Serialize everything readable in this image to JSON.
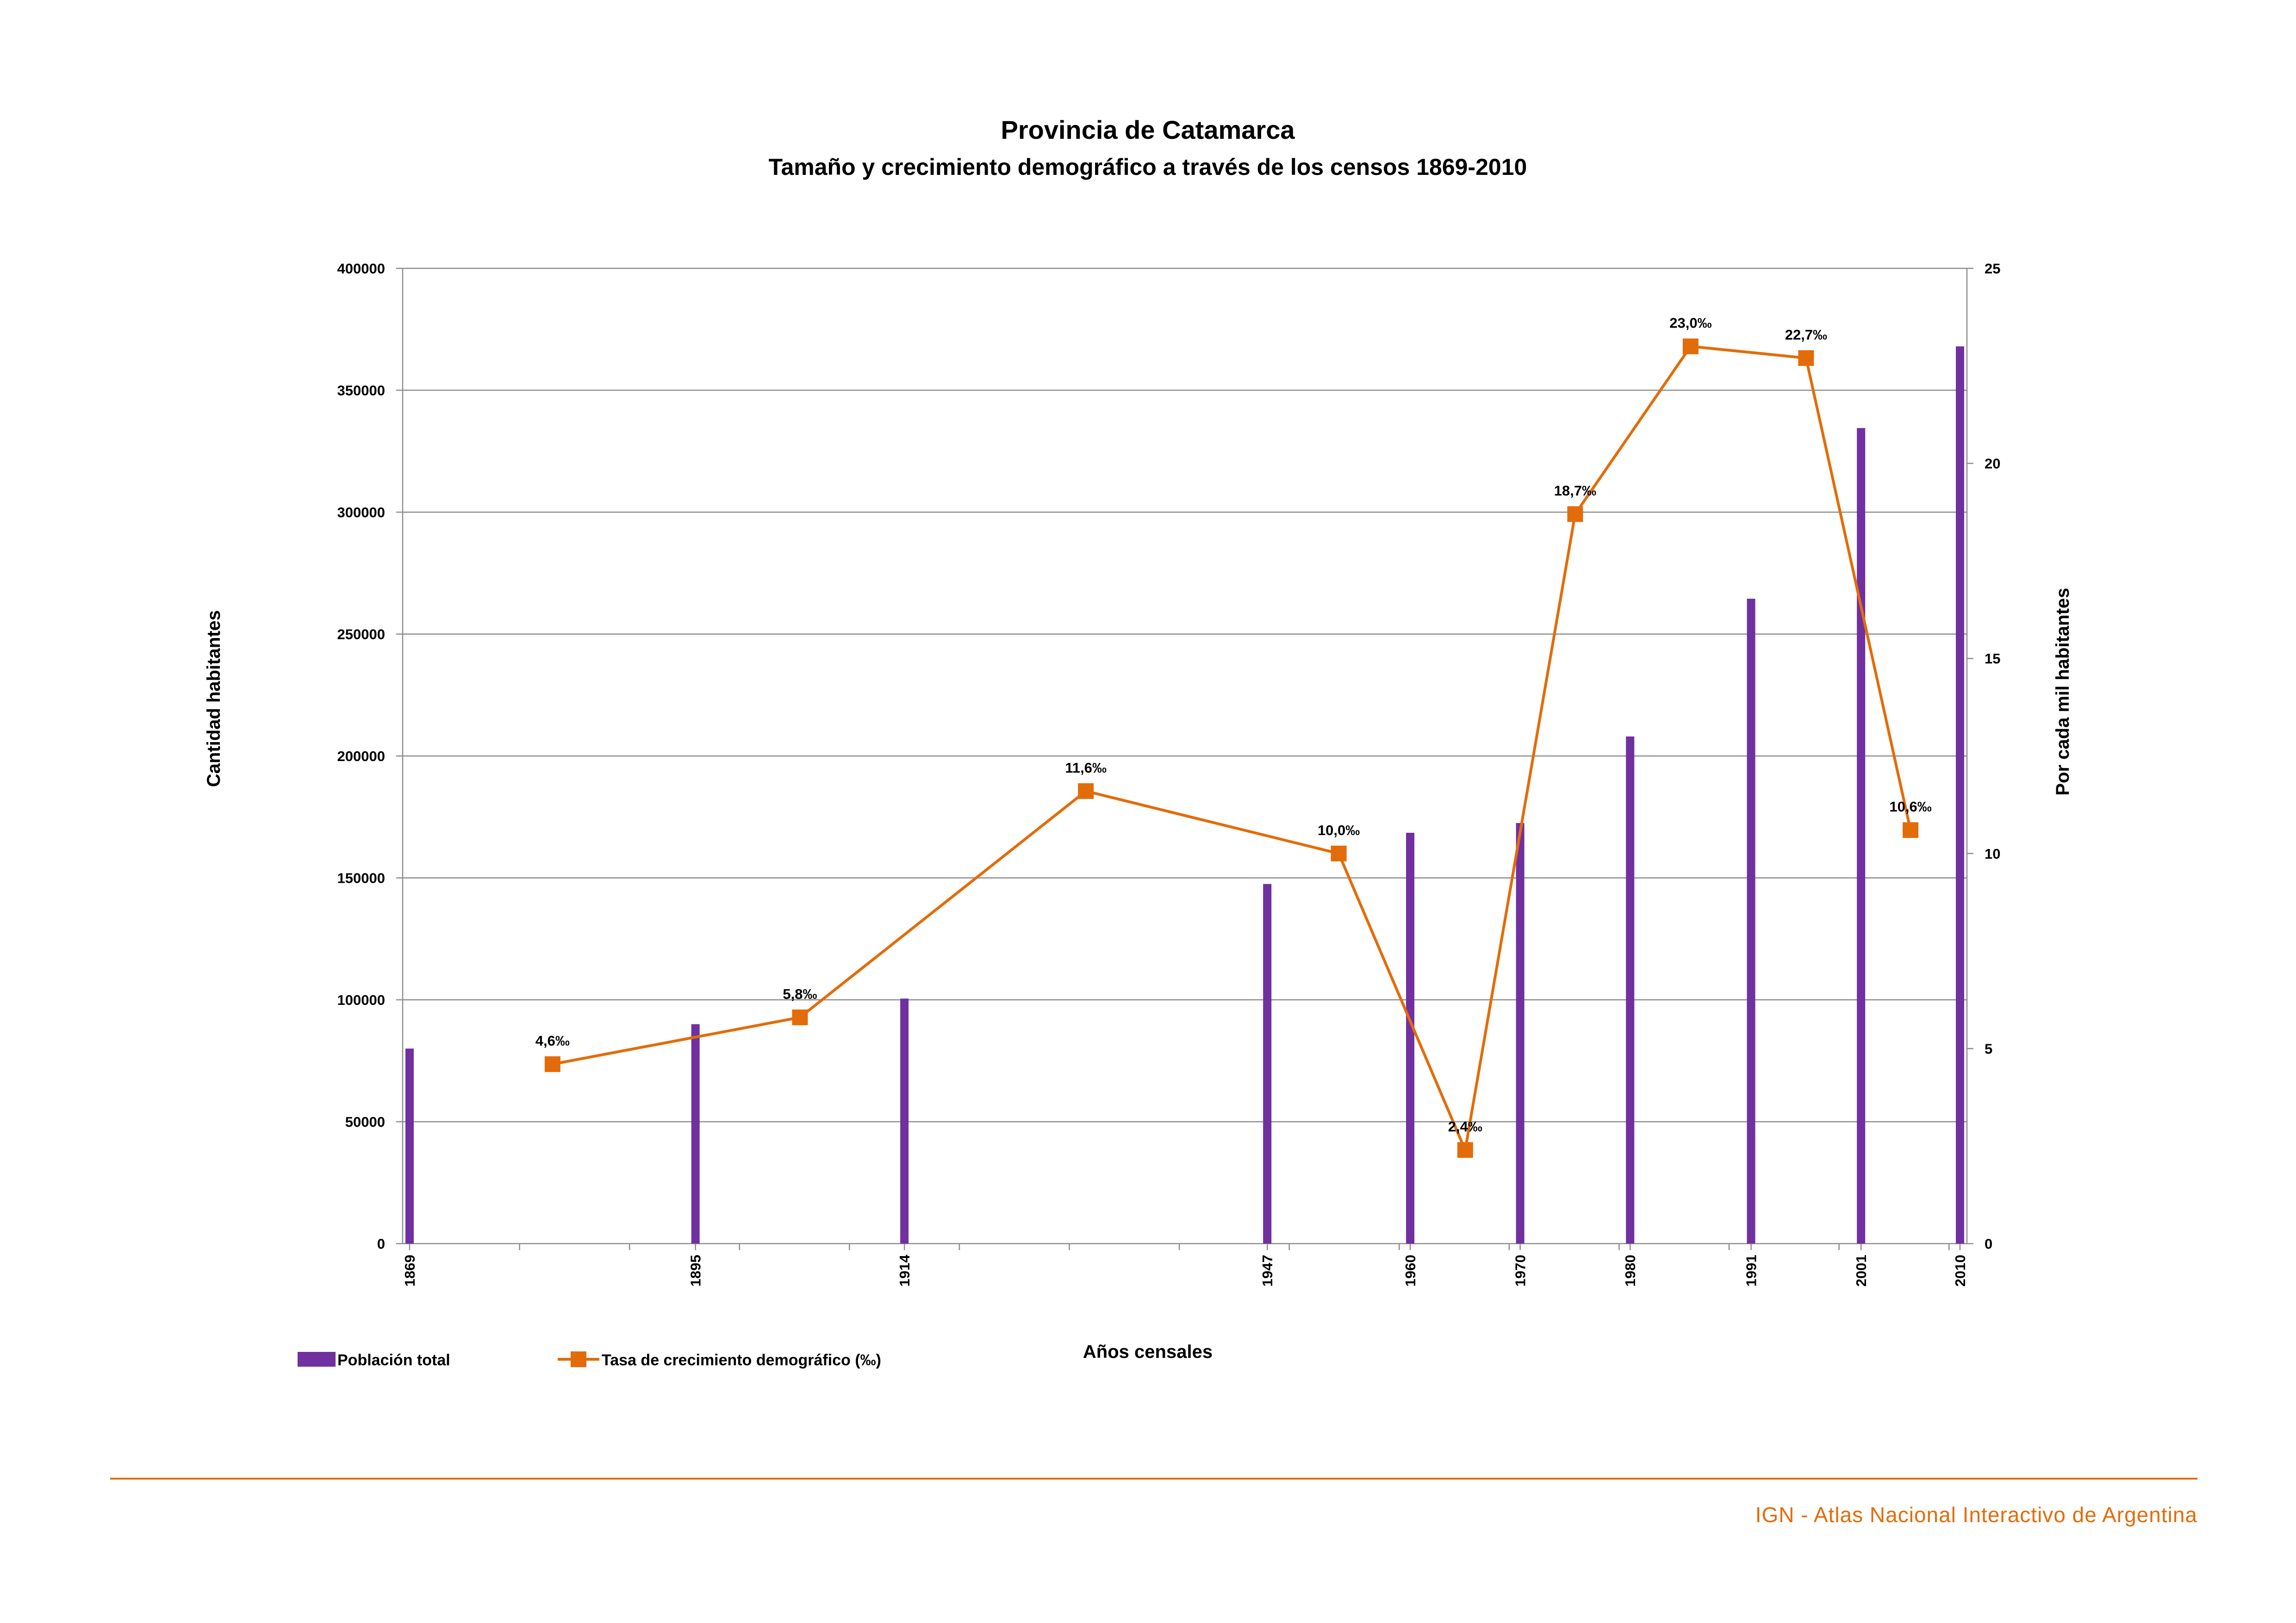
{
  "chart_data": {
    "type": "bar+line",
    "title": "Provincia de Catamarca",
    "subtitle": "Tamaño y crecimiento demográfico a través de los censos 1869-2010",
    "xlabel": "Años censales",
    "ylabel_left": "Cantidad habitantes",
    "ylabel_right": "Por cada mil habitantes",
    "ylim_left": [
      0,
      400000
    ],
    "ylim_right": [
      0,
      25
    ],
    "yticks_left": [
      "0",
      "50000",
      "100000",
      "150000",
      "200000",
      "250000",
      "300000",
      "350000",
      "400000"
    ],
    "yticks_right": [
      "0",
      "5",
      "10",
      "15",
      "20",
      "25"
    ],
    "x_range": [
      1869,
      2010
    ],
    "x_minor_ticks": [
      1879,
      1889,
      1899,
      1909,
      1919,
      1929,
      1939,
      1949,
      1959,
      1969,
      1979,
      1989,
      1999,
      2009
    ],
    "grid": true,
    "legend_position": "bottom-left",
    "bars": {
      "name": "Población total",
      "color": "#7030a0",
      "categories": [
        "1869",
        "1895",
        "1914",
        "1947",
        "1960",
        "1970",
        "1980",
        "1991",
        "2001",
        "2010"
      ],
      "values": [
        80000,
        90000,
        100500,
        147500,
        168500,
        172500,
        208000,
        264500,
        334500,
        368000
      ]
    },
    "line": {
      "name": "Tasa de crecimiento demográfico (‰)",
      "color": "#e36c0a",
      "x": [
        1882,
        1904.5,
        1930.5,
        1953.5,
        1965,
        1975,
        1985.5,
        1996,
        2005.5
      ],
      "values": [
        4.6,
        5.8,
        11.6,
        10.0,
        2.4,
        18.7,
        23.0,
        22.7,
        10.6
      ],
      "labels": [
        "4,6‰",
        "5,8‰",
        "11,6‰",
        "10,0‰",
        "2,4‰",
        "18,7‰",
        "23,0‰",
        "22,7‰",
        "10,6‰"
      ]
    }
  },
  "footer": {
    "text": "IGN - Atlas Nacional Interactivo de Argentina",
    "color": "#e36c0a"
  }
}
